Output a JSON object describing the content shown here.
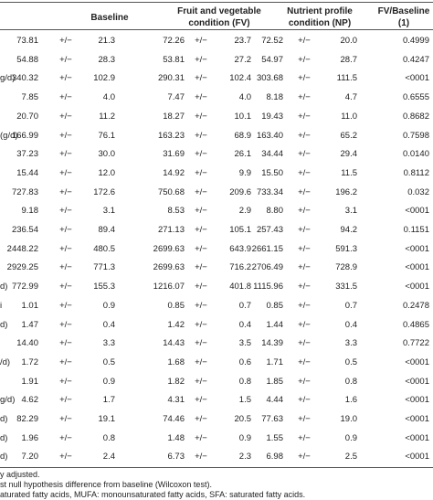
{
  "headers": {
    "baseline": "Baseline",
    "fv": "Fruit and vegetable condition (FV)",
    "np": "Nutrient profile condition (NP)",
    "pval": "FV/Baseline (1)"
  },
  "rows": [
    {
      "label": "",
      "b": "73.81",
      "bpm": "+/−",
      "bsd": "21.3",
      "fv": "72.26",
      "fvpm": "+/−",
      "fvsd": "23.7",
      "np": "72.52",
      "nppm": "+/−",
      "npsd": "20.0",
      "p": "0.4999"
    },
    {
      "label": "",
      "b": "54.88",
      "bpm": "+/−",
      "bsd": "28.3",
      "fv": "53.81",
      "fvpm": "+/−",
      "fvsd": "27.2",
      "np": "54.97",
      "nppm": "+/−",
      "npsd": "28.7",
      "p": "0.4247"
    },
    {
      "label": "g/d)",
      "b": "340.32",
      "bpm": "+/−",
      "bsd": "102.9",
      "fv": "290.31",
      "fvpm": "+/−",
      "fvsd": "102.4",
      "np": "303.68",
      "nppm": "+/−",
      "npsd": "111.5",
      "p": "<0001"
    },
    {
      "label": "",
      "b": "7.85",
      "bpm": "+/−",
      "bsd": "4.0",
      "fv": "7.47",
      "fvpm": "+/−",
      "fvsd": "4.0",
      "np": "8.18",
      "nppm": "+/−",
      "npsd": "4.7",
      "p": "0.6555"
    },
    {
      "label": "",
      "b": "20.70",
      "bpm": "+/−",
      "bsd": "11.2",
      "fv": "18.27",
      "fvpm": "+/−",
      "fvsd": "10.1",
      "np": "19.43",
      "nppm": "+/−",
      "npsd": "11.0",
      "p": "0.8682"
    },
    {
      "label": "(g/d)",
      "b": "166.99",
      "bpm": "+/−",
      "bsd": "76.1",
      "fv": "163.23",
      "fvpm": "+/−",
      "fvsd": "68.9",
      "np": "163.40",
      "nppm": "+/−",
      "npsd": "65.2",
      "p": "0.7598"
    },
    {
      "label": "",
      "b": "37.23",
      "bpm": "+/−",
      "bsd": "30.0",
      "fv": "31.69",
      "fvpm": "+/−",
      "fvsd": "26.1",
      "np": "34.44",
      "nppm": "+/−",
      "npsd": "29.4",
      "p": "0.0140"
    },
    {
      "label": "",
      "b": "15.44",
      "bpm": "+/−",
      "bsd": "12.0",
      "fv": "14.92",
      "fvpm": "+/−",
      "fvsd": "9.9",
      "np": "15.50",
      "nppm": "+/−",
      "npsd": "11.5",
      "p": "0.8112"
    },
    {
      "label": "",
      "b": "727.83",
      "bpm": "+/−",
      "bsd": "172.6",
      "fv": "750.68",
      "fvpm": "+/−",
      "fvsd": "209.6",
      "np": "733.34",
      "nppm": "+/−",
      "npsd": "196.2",
      "p": "0.032"
    },
    {
      "label": "",
      "b": "9.18",
      "bpm": "+/−",
      "bsd": "3.1",
      "fv": "8.53",
      "fvpm": "+/−",
      "fvsd": "2.9",
      "np": "8.80",
      "nppm": "+/−",
      "npsd": "3.1",
      "p": "<0001"
    },
    {
      "label": "",
      "b": "236.54",
      "bpm": "+/−",
      "bsd": "89.4",
      "fv": "271.13",
      "fvpm": "+/−",
      "fvsd": "105.1",
      "np": "257.43",
      "nppm": "+/−",
      "npsd": "94.2",
      "p": "0.1151"
    },
    {
      "label": "",
      "b": "2448.22",
      "bpm": "+/−",
      "bsd": "480.5",
      "fv": "2699.63",
      "fvpm": "+/−",
      "fvsd": "643.9",
      "np": "2661.15",
      "nppm": "+/−",
      "npsd": "591.3",
      "p": "<0001"
    },
    {
      "label": "",
      "b": "2929.25",
      "bpm": "+/−",
      "bsd": "771.3",
      "fv": "2699.63",
      "fvpm": "+/−",
      "fvsd": "716.2",
      "np": "2706.49",
      "nppm": "+/−",
      "npsd": "728.9",
      "p": "<0001"
    },
    {
      "label": "d)",
      "b": "772.99",
      "bpm": "+/−",
      "bsd": "155.3",
      "fv": "1216.07",
      "fvpm": "+/−",
      "fvsd": "401.8",
      "np": "1115.96",
      "nppm": "+/−",
      "npsd": "331.5",
      "p": "<0001"
    },
    {
      "label": "i",
      "b": "1.01",
      "bpm": "+/−",
      "bsd": "0.9",
      "fv": "0.85",
      "fvpm": "+/−",
      "fvsd": "0.7",
      "np": "0.85",
      "nppm": "+/−",
      "npsd": "0.7",
      "p": "0.2478"
    },
    {
      "label": "d)",
      "b": "1.47",
      "bpm": "+/−",
      "bsd": "0.4",
      "fv": "1.42",
      "fvpm": "+/−",
      "fvsd": "0.4",
      "np": "1.44",
      "nppm": "+/−",
      "npsd": "0.4",
      "p": "0.4865"
    },
    {
      "label": "",
      "b": "14.40",
      "bpm": "+/−",
      "bsd": "3.3",
      "fv": "14.43",
      "fvpm": "+/−",
      "fvsd": "3.5",
      "np": "14.39",
      "nppm": "+/−",
      "npsd": "3.3",
      "p": "0.7722"
    },
    {
      "label": "/d)",
      "b": "1.72",
      "bpm": "+/−",
      "bsd": "0.5",
      "fv": "1.68",
      "fvpm": "+/−",
      "fvsd": "0.6",
      "np": "1.71",
      "nppm": "+/−",
      "npsd": "0.5",
      "p": "<0001"
    },
    {
      "label": "",
      "b": "1.91",
      "bpm": "+/−",
      "bsd": "0.9",
      "fv": "1.82",
      "fvpm": "+/−",
      "fvsd": "0.8",
      "np": "1.85",
      "nppm": "+/−",
      "npsd": "0.8",
      "p": "<0001"
    },
    {
      "label": "g/d)",
      "b": "4.62",
      "bpm": "+/−",
      "bsd": "1.7",
      "fv": "4.31",
      "fvpm": "+/−",
      "fvsd": "1.5",
      "np": "4.44",
      "nppm": "+/−",
      "npsd": "1.6",
      "p": "<0001"
    },
    {
      "label": "d)",
      "b": "82.29",
      "bpm": "+/−",
      "bsd": "19.1",
      "fv": "74.46",
      "fvpm": "+/−",
      "fvsd": "20.5",
      "np": "77.63",
      "nppm": "+/−",
      "npsd": "19.0",
      "p": "<0001"
    },
    {
      "label": "d)",
      "b": "1.96",
      "bpm": "+/−",
      "bsd": "0.8",
      "fv": "1.48",
      "fvpm": "+/−",
      "fvsd": "0.9",
      "np": "1.55",
      "nppm": "+/−",
      "npsd": "0.9",
      "p": "<0001"
    },
    {
      "label": "d)",
      "b": "7.20",
      "bpm": "+/−",
      "bsd": "2.4",
      "fv": "6.73",
      "fvpm": "+/−",
      "fvsd": "2.3",
      "np": "6.98",
      "nppm": "+/−",
      "npsd": "2.5",
      "p": "<0001"
    }
  ],
  "footnotes": [
    "y adjusted.",
    "st null hypothesis difference from baseline (Wilcoxon test).",
    "aturated fatty acids, MUFA: monounsaturated fatty acids, SFA: saturated fatty acids."
  ]
}
